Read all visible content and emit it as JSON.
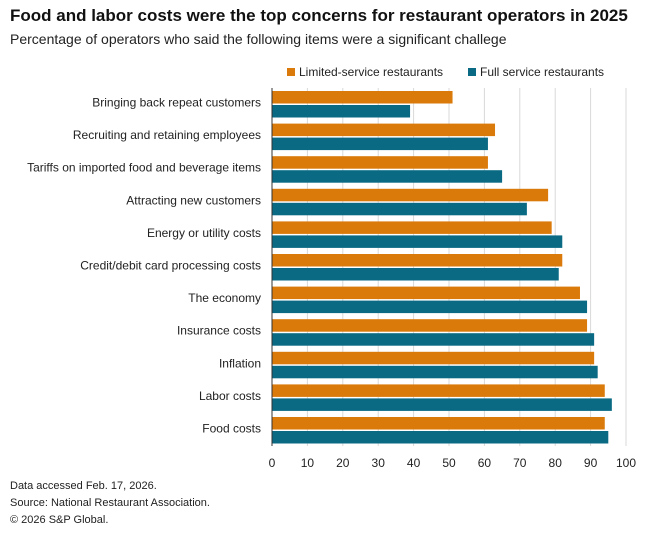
{
  "colors": {
    "limited": "#DA7A0A",
    "full": "#0A6A84",
    "grid": "#D9D9D9",
    "axis": "#333333"
  },
  "chart_data": {
    "type": "bar",
    "orientation": "horizontal",
    "title": "Food and labor costs were the top concerns for restaurant operators in 2025",
    "subtitle": "Percentage of operators who said the following items were a significant challege",
    "xlabel": "",
    "ylabel": "",
    "xlim": [
      0,
      100
    ],
    "xticks": [
      "0",
      "10",
      "20",
      "30",
      "40",
      "50",
      "60",
      "70",
      "80",
      "90",
      "100"
    ],
    "grid": true,
    "legend_position": "top-right",
    "categories": [
      "Bringing back repeat customers",
      "Recruiting and retaining employees",
      "Tariffs on imported food and beverage items",
      "Attracting new customers",
      "Energy or utility costs",
      "Credit/debit card processing costs",
      "The economy",
      "Insurance costs",
      "Inflation",
      "Labor costs",
      "Food costs"
    ],
    "series": [
      {
        "name": "Limited-service restaurants",
        "color_key": "limited",
        "values": [
          51,
          63,
          61,
          78,
          79,
          82,
          87,
          89,
          91,
          94,
          94
        ]
      },
      {
        "name": "Full service restaurants",
        "color_key": "full",
        "values": [
          39,
          61,
          65,
          72,
          82,
          81,
          89,
          91,
          92,
          96,
          95
        ]
      }
    ]
  },
  "footer": {
    "line1": "Data accessed Feb. 17, 2026.",
    "line2": "Source: National Restaurant Association.",
    "line3": "© 2026 S&P Global."
  }
}
